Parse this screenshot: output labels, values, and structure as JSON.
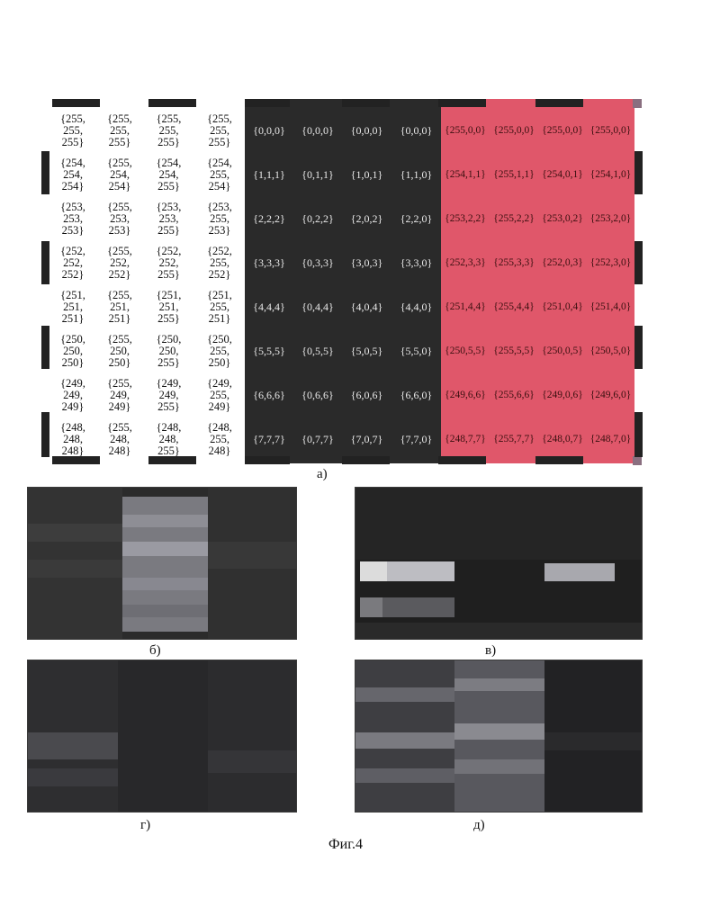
{
  "figure": {
    "caption": "Фиг.4",
    "panel_labels": {
      "a": "а)",
      "b": "б)",
      "v": "в)",
      "g": "г)",
      "d": "д)"
    }
  },
  "table": {
    "white_block": [
      [
        "{255,\n255,\n255}",
        "{255,\n255,\n255}",
        "{255,\n255,\n255}",
        "{255,\n255,\n255}"
      ],
      [
        "{254,\n254,\n254}",
        "{255,\n254,\n254}",
        "{254,\n254,\n255}",
        "{254,\n255,\n254}"
      ],
      [
        "{253,\n253,\n253}",
        "{255,\n253,\n253}",
        "{253,\n253,\n255}",
        "{253,\n255,\n253}"
      ],
      [
        "{252,\n252,\n252}",
        "{255,\n252,\n252}",
        "{252,\n252,\n255}",
        "{252,\n255,\n252}"
      ],
      [
        "{251,\n251,\n251}",
        "{255,\n251,\n251}",
        "{251,\n251,\n255}",
        "{251,\n255,\n251}"
      ],
      [
        "{250,\n250,\n250}",
        "{255,\n250,\n250}",
        "{250,\n250,\n255}",
        "{250,\n255,\n250}"
      ],
      [
        "{249,\n249,\n249}",
        "{255,\n249,\n249}",
        "{249,\n249,\n255}",
        "{249,\n255,\n249}"
      ],
      [
        "{248,\n248,\n248}",
        "{255,\n248,\n248}",
        "{248,\n248,\n255}",
        "{248,\n255,\n248}"
      ]
    ],
    "black_block": [
      [
        "{0,0,0}",
        "{0,0,0}",
        "{0,0,0}",
        "{0,0,0}"
      ],
      [
        "{1,1,1}",
        "{0,1,1}",
        "{1,0,1}",
        "{1,1,0}"
      ],
      [
        "{2,2,2}",
        "{0,2,2}",
        "{2,0,2}",
        "{2,2,0}"
      ],
      [
        "{3,3,3}",
        "{0,3,3}",
        "{3,0,3}",
        "{3,3,0}"
      ],
      [
        "{4,4,4}",
        "{0,4,4}",
        "{4,0,4}",
        "{4,4,0}"
      ],
      [
        "{5,5,5}",
        "{0,5,5}",
        "{5,0,5}",
        "{5,5,0}"
      ],
      [
        "{6,6,6}",
        "{0,6,6}",
        "{6,0,6}",
        "{6,6,0}"
      ],
      [
        "{7,7,7}",
        "{0,7,7}",
        "{7,0,7}",
        "{7,7,0}"
      ]
    ],
    "red_block": [
      [
        "{255,0,0}",
        "{255,0,0}",
        "{255,0,0}",
        "{255,0,0}"
      ],
      [
        "{254,1,1}",
        "{255,1,1}",
        "{254,0,1}",
        "{254,1,0}"
      ],
      [
        "{253,2,2}",
        "{255,2,2}",
        "{253,0,2}",
        "{253,2,0}"
      ],
      [
        "{252,3,3}",
        "{255,3,3}",
        "{252,0,3}",
        "{252,3,0}"
      ],
      [
        "{251,4,4}",
        "{255,4,4}",
        "{251,0,4}",
        "{251,4,0}"
      ],
      [
        "{250,5,5}",
        "{255,5,5}",
        "{250,0,5}",
        "{250,5,0}"
      ],
      [
        "{249,6,6}",
        "{255,6,6}",
        "{249,0,6}",
        "{249,6,0}"
      ],
      [
        "{248,7,7}",
        "{255,7,7}",
        "{248,0,7}",
        "{248,7,0}"
      ]
    ]
  },
  "colors": {
    "white_block": "#ffffff",
    "black_block": "#2a2a2a",
    "red_block": "#e0576a",
    "marker": "#222222"
  }
}
